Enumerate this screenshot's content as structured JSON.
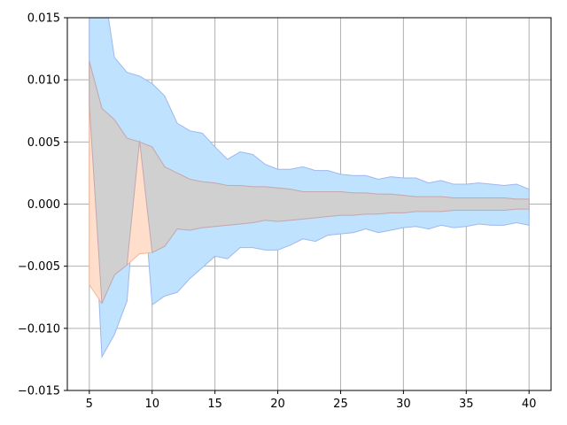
{
  "chart_data": {
    "type": "area",
    "title": "",
    "xlabel": "",
    "ylabel": "",
    "xlim": [
      3.25,
      41.75
    ],
    "ylim": [
      -0.015,
      0.015
    ],
    "grid": true,
    "x_ticks": [
      5,
      10,
      15,
      20,
      25,
      30,
      35,
      40
    ],
    "x_tick_labels": [
      "5",
      "10",
      "15",
      "20",
      "25",
      "30",
      "35",
      "40"
    ],
    "y_ticks": [
      -0.015,
      -0.01,
      -0.005,
      0.0,
      0.005,
      0.01,
      0.015
    ],
    "y_tick_labels": [
      "−0.015",
      "−0.010",
      "−0.005",
      "0.000",
      "0.005",
      "0.010",
      "0.015"
    ],
    "colors": {
      "band_blue_fill": "#bfe3ff",
      "band_blue_edge": "#9fb6f0",
      "band_orange_fill": "#ffdfcc",
      "band_orange_edge": "#f2b59a",
      "overlap_fill": "#d0d0d0",
      "overlap_edge": "#c2a8b0",
      "grid": "#b0b0b0"
    },
    "x": [
      5,
      6,
      7,
      8,
      9,
      10,
      11,
      12,
      13,
      14,
      15,
      16,
      17,
      18,
      19,
      20,
      21,
      22,
      23,
      24,
      25,
      26,
      27,
      28,
      29,
      30,
      31,
      32,
      33,
      34,
      35,
      36,
      37,
      38,
      39,
      40
    ],
    "series": [
      {
        "upper": [
          0.0245,
          0.0185,
          0.0118,
          0.0106,
          0.0103,
          0.0097,
          0.0087,
          0.0065,
          0.0059,
          0.0057,
          0.0046,
          0.0036,
          0.0042,
          0.004,
          0.0032,
          0.0028,
          0.0028,
          0.003,
          0.0027,
          0.0027,
          0.0024,
          0.0023,
          0.0023,
          0.002,
          0.0022,
          0.0021,
          0.0021,
          0.0017,
          0.0019,
          0.0016,
          0.0016,
          0.0017,
          0.0016,
          0.0015,
          0.0016,
          0.0012
        ],
        "lower": [
          0.008,
          -0.0123,
          -0.0105,
          -0.0078,
          0.0051,
          -0.0081,
          -0.0074,
          -0.0071,
          -0.006,
          -0.0051,
          -0.0042,
          -0.0044,
          -0.0035,
          -0.0035,
          -0.0037,
          -0.0037,
          -0.0033,
          -0.0028,
          -0.003,
          -0.0025,
          -0.0024,
          -0.0023,
          -0.002,
          -0.0023,
          -0.0021,
          -0.0019,
          -0.0018,
          -0.002,
          -0.0017,
          -0.0019,
          -0.0018,
          -0.0016,
          -0.0017,
          -0.0017,
          -0.0015,
          -0.0017
        ]
      },
      {
        "upper": [
          0.0115,
          0.0077,
          0.0068,
          0.0053,
          0.005,
          0.0046,
          0.003,
          0.0025,
          0.002,
          0.0018,
          0.0017,
          0.0015,
          0.0015,
          0.0014,
          0.0014,
          0.0013,
          0.0012,
          0.001,
          0.001,
          0.001,
          0.001,
          0.0009,
          0.0009,
          0.0008,
          0.0008,
          0.0007,
          0.0006,
          0.0006,
          0.0006,
          0.0005,
          0.0005,
          0.0005,
          0.0005,
          0.0005,
          0.0004,
          0.0004
        ],
        "lower": [
          -0.0065,
          -0.008,
          -0.0057,
          -0.0049,
          -0.004,
          -0.0039,
          -0.0034,
          -0.002,
          -0.0021,
          -0.0019,
          -0.0018,
          -0.0017,
          -0.0016,
          -0.0015,
          -0.0013,
          -0.0014,
          -0.0013,
          -0.0012,
          -0.0011,
          -0.001,
          -0.0009,
          -0.0009,
          -0.0008,
          -0.0008,
          -0.0007,
          -0.0007,
          -0.0006,
          -0.0006,
          -0.0006,
          -0.0005,
          -0.0005,
          -0.0005,
          -0.0005,
          -0.0005,
          -0.0004,
          -0.0004
        ]
      }
    ]
  }
}
